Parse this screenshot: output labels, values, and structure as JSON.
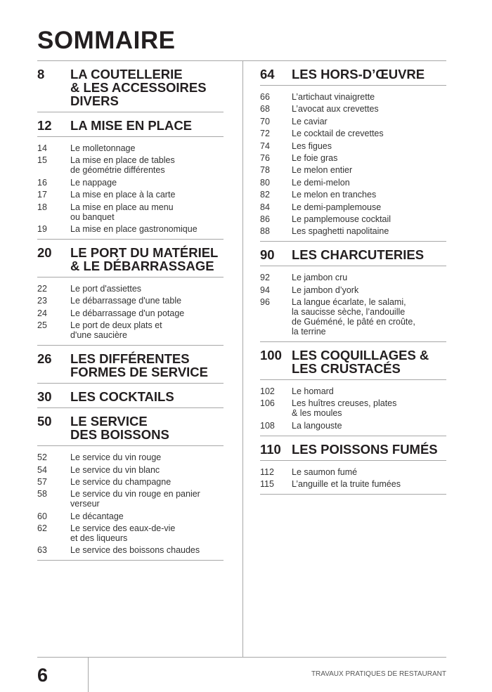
{
  "title": "SOMMAIRE",
  "footer": {
    "page_number": "6",
    "book_title": "TRAVAUX PRATIQUES DE RESTAURANT"
  },
  "columns": [
    {
      "sections": [
        {
          "page": "8",
          "title": "LA COUTELLERIE\n& LES ACCESSOIRES\nDIVERS",
          "items": []
        },
        {
          "page": "12",
          "title": "LA MISE EN PLACE",
          "items": [
            {
              "page": "14",
              "text": "Le molletonnage"
            },
            {
              "page": "15",
              "text": "La mise en place de tables\nde géométrie différentes"
            },
            {
              "page": "16",
              "text": "Le nappage"
            },
            {
              "page": "17",
              "text": "La mise en place à la carte"
            },
            {
              "page": "18",
              "text": "La mise en place au menu\nou banquet"
            },
            {
              "page": "19",
              "text": "La mise en place gastronomique"
            }
          ]
        },
        {
          "page": "20",
          "title": "LE PORT DU MATÉRIEL\n& LE DÉBARRASSAGE",
          "items": [
            {
              "page": "22",
              "text": "Le port d'assiettes"
            },
            {
              "page": "23",
              "text": "Le débarrassage d'une table"
            },
            {
              "page": "24",
              "text": "Le débarrassage d'un potage"
            },
            {
              "page": "25",
              "text": "Le port de deux plats et\nd'une saucière"
            }
          ]
        },
        {
          "page": "26",
          "title": "LES DIFFÉRENTES\nFORMES DE SERVICE",
          "items": []
        },
        {
          "page": "30",
          "title": "LES COCKTAILS",
          "items": []
        },
        {
          "page": "50",
          "title": "LE SERVICE\nDES BOISSONS",
          "items": [
            {
              "page": "52",
              "text": "Le service du vin rouge"
            },
            {
              "page": "54",
              "text": "Le service du vin blanc"
            },
            {
              "page": "57",
              "text": "Le service du champagne"
            },
            {
              "page": "58",
              "text": "Le service du vin rouge en panier\nverseur"
            },
            {
              "page": "60",
              "text": "Le décantage"
            },
            {
              "page": "62",
              "text": "Le service des eaux-de-vie\net des liqueurs"
            },
            {
              "page": "63",
              "text": "Le service des boissons chaudes"
            }
          ]
        }
      ]
    },
    {
      "sections": [
        {
          "page": "64",
          "title": "LES HORS-D’ŒUVRE",
          "items": [
            {
              "page": "66",
              "text": "L’artichaut vinaigrette"
            },
            {
              "page": "68",
              "text": "L’avocat aux crevettes"
            },
            {
              "page": "70",
              "text": "Le caviar"
            },
            {
              "page": "72",
              "text": "Le cocktail de crevettes"
            },
            {
              "page": "74",
              "text": "Les figues"
            },
            {
              "page": "76",
              "text": "Le foie gras"
            },
            {
              "page": "78",
              "text": "Le melon entier"
            },
            {
              "page": "80",
              "text": "Le demi-melon"
            },
            {
              "page": "82",
              "text": "Le melon en tranches"
            },
            {
              "page": "84",
              "text": "Le demi-pamplemouse"
            },
            {
              "page": "86",
              "text": "Le pamplemouse cocktail"
            },
            {
              "page": "88",
              "text": "Les spaghetti napolitaine"
            }
          ]
        },
        {
          "page": "90",
          "title": "LES CHARCUTERIES",
          "items": [
            {
              "page": "92",
              "text": "Le jambon cru"
            },
            {
              "page": "94",
              "text": "Le jambon d’york"
            },
            {
              "page": "96",
              "text": "La langue écarlate, le salami,\nla saucisse sèche, l’andouille\nde Guéméné, le pâté en croûte,\nla terrine"
            }
          ]
        },
        {
          "page": "100",
          "title": "LES COQUILLAGES &\nLES CRUSTACÉS",
          "items": [
            {
              "page": "102",
              "text": "Le homard"
            },
            {
              "page": "106",
              "text": "Les huîtres creuses, plates\n& les moules"
            },
            {
              "page": "108",
              "text": "La langouste"
            }
          ]
        },
        {
          "page": "110",
          "title": "LES POISSONS FUMÉS",
          "items": [
            {
              "page": "112",
              "text": "Le saumon fumé"
            },
            {
              "page": "115",
              "text": "L’anguille et la truite fumées"
            }
          ]
        }
      ]
    }
  ]
}
